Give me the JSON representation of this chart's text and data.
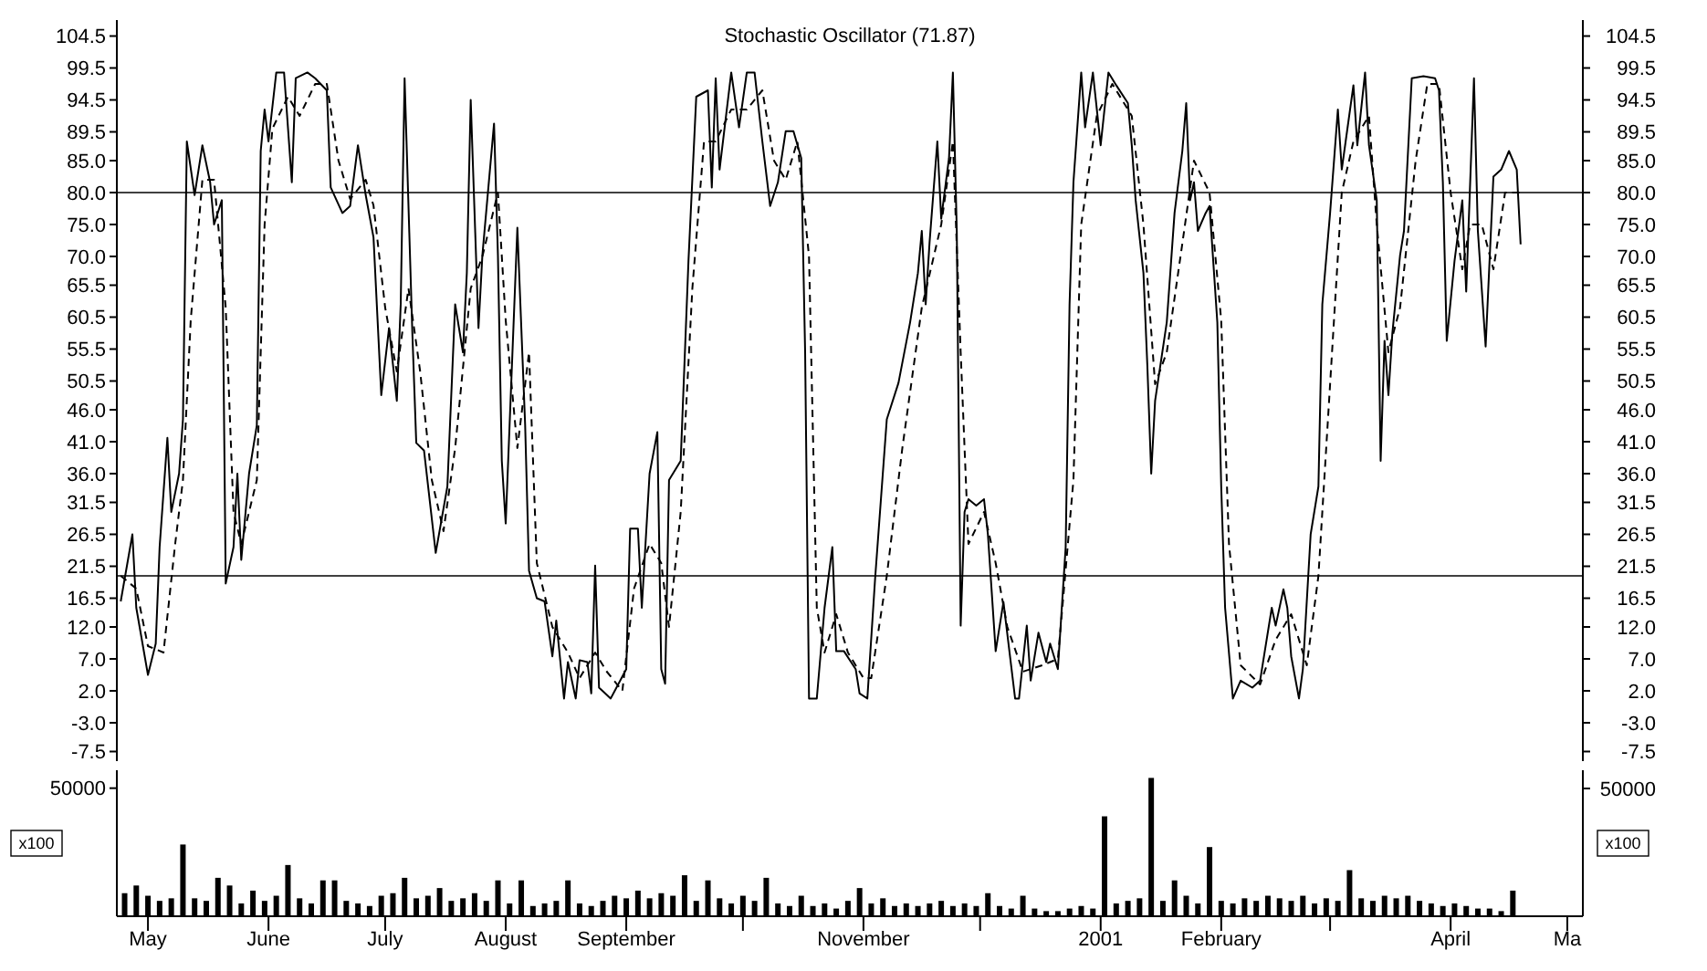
{
  "chart_data": [
    {
      "type": "line",
      "title": "Stochastic Oscillator (71.87)",
      "xlim": [
        "2000-04-23",
        "2001-05-05"
      ],
      "ylim": [
        -9,
        107
      ],
      "y2lim": [
        -9,
        107
      ],
      "tick_labels": "y",
      "yticks": [
        {
          "value": 104.5,
          "label": "104.5"
        },
        {
          "value": 99.5,
          "label": "99.5"
        },
        {
          "value": 94.5,
          "label": "94.5"
        },
        {
          "value": 89.5,
          "label": "89.5"
        },
        {
          "value": 85,
          "label": "85.0"
        },
        {
          "value": 80,
          "label": "80.0"
        },
        {
          "value": 75,
          "label": "75.0"
        },
        {
          "value": 70,
          "label": "70.0"
        },
        {
          "value": 65.5,
          "label": "65.5"
        },
        {
          "value": 60.5,
          "label": "60.5"
        },
        {
          "value": 55.5,
          "label": "55.5"
        },
        {
          "value": 50.5,
          "label": "50.5"
        },
        {
          "value": 46,
          "label": "46.0"
        },
        {
          "value": 41,
          "label": "41.0"
        },
        {
          "value": 36,
          "label": "36.0"
        },
        {
          "value": 31.5,
          "label": "31.5"
        },
        {
          "value": 26.5,
          "label": "26.5"
        },
        {
          "value": 21.5,
          "label": "21.5"
        },
        {
          "value": 16.5,
          "label": "16.5"
        },
        {
          "value": 12,
          "label": "12.0"
        },
        {
          "value": 7,
          "label": "7.0"
        },
        {
          "value": 2,
          "label": "2.0"
        },
        {
          "value": -3,
          "label": "-3.0"
        },
        {
          "value": -7.5,
          "label": "-7.5"
        }
      ],
      "y2ticks": [
        {
          "value": 104.5,
          "label": "104.5"
        },
        {
          "value": 99.5,
          "label": "99.5"
        },
        {
          "value": 94.5,
          "label": "94.5"
        },
        {
          "value": 89.5,
          "label": "89.5"
        },
        {
          "value": 85,
          "label": "85.0"
        },
        {
          "value": 80,
          "label": "80.0"
        },
        {
          "value": 75,
          "label": "75.0"
        },
        {
          "value": 70,
          "label": "70.0"
        },
        {
          "value": 65.5,
          "label": "65.5"
        },
        {
          "value": 60.5,
          "label": "60.5"
        },
        {
          "value": 55.5,
          "label": "55.5"
        },
        {
          "value": 50.5,
          "label": "50.5"
        },
        {
          "value": 46,
          "label": "46.0"
        },
        {
          "value": 41,
          "label": "41.0"
        },
        {
          "value": 36,
          "label": "36.0"
        },
        {
          "value": 31.5,
          "label": "31.5"
        },
        {
          "value": 26.5,
          "label": "26.5"
        },
        {
          "value": 21.5,
          "label": "21.5"
        },
        {
          "value": 16.5,
          "label": "16.5"
        },
        {
          "value": 12,
          "label": "12.0"
        },
        {
          "value": 7,
          "label": "7.0"
        },
        {
          "value": 2,
          "label": "2.0"
        },
        {
          "value": -3,
          "label": "-3.0"
        },
        {
          "value": -7.5,
          "label": "-7.5"
        }
      ],
      "ref_lines": [
        {
          "axis": "y",
          "value": 80,
          "color": "#000000"
        },
        {
          "axis": "y",
          "value": 20,
          "color": "#000000"
        }
      ],
      "series": [
        {
          "color": "#000000",
          "line_style": "solid",
          "x": [
            "2000-04-24",
            "2000-04-27",
            "2000-04-28",
            "2000-05-01",
            "2000-05-03",
            "2000-05-04",
            "2000-05-06",
            "2000-05-07",
            "2000-05-09",
            "2000-05-10",
            "2000-05-11",
            "2000-05-13",
            "2000-05-15",
            "2000-05-17",
            "2000-05-18",
            "2000-05-20",
            "2000-05-21",
            "2000-05-23",
            "2000-05-24",
            "2000-05-25",
            "2000-05-27",
            "2000-05-29",
            "2000-05-30",
            "2000-05-31",
            "2000-06-01",
            "2000-06-03",
            "2000-06-05",
            "2000-06-07",
            "2000-06-08",
            "2000-06-11",
            "2000-06-13",
            "2000-06-16",
            "2000-06-17",
            "2000-06-20",
            "2000-06-22",
            "2000-06-24",
            "2000-06-26",
            "2000-06-28",
            "2000-06-30",
            "2000-07-02",
            "2000-07-04",
            "2000-07-05",
            "2000-07-06",
            "2000-07-08",
            "2000-07-09",
            "2000-07-11",
            "2000-07-14",
            "2000-07-17",
            "2000-07-19",
            "2000-07-21",
            "2000-07-22",
            "2000-07-23",
            "2000-07-25",
            "2000-07-26",
            "2000-07-29",
            "2000-07-30",
            "2000-07-31",
            "2000-08-01",
            "2000-08-04",
            "2000-08-06",
            "2000-08-07",
            "2000-08-09",
            "2000-08-11",
            "2000-08-13",
            "2000-08-14",
            "2000-08-16",
            "2000-08-17",
            "2000-08-19",
            "2000-08-20",
            "2000-08-22",
            "2000-08-23",
            "2000-08-24",
            "2000-08-25",
            "2000-08-28",
            "2000-09-01",
            "2000-09-02",
            "2000-09-04",
            "2000-09-05",
            "2000-09-07",
            "2000-09-09",
            "2000-09-10",
            "2000-09-11",
            "2000-09-12",
            "2000-09-15",
            "2000-09-17",
            "2000-09-19",
            "2000-09-22",
            "2000-09-23",
            "2000-09-24",
            "2000-09-25",
            "2000-09-28",
            "2000-09-30",
            "2000-10-02",
            "2000-10-04",
            "2000-10-06",
            "2000-10-08",
            "2000-10-10",
            "2000-10-12",
            "2000-10-14",
            "2000-10-16",
            "2000-10-17",
            "2000-10-18",
            "2000-10-20",
            "2000-10-22",
            "2000-10-24",
            "2000-10-25",
            "2000-10-27",
            "2000-10-30",
            "2000-10-31",
            "2000-11-02",
            "2000-11-04",
            "2000-11-07",
            "2000-11-10",
            "2000-11-13",
            "2000-11-15",
            "2000-11-16",
            "2000-11-17",
            "2000-11-18",
            "2000-11-20",
            "2000-11-21",
            "2000-11-23",
            "2000-11-24",
            "2000-11-25",
            "2000-11-26",
            "2000-11-27",
            "2000-11-28",
            "2000-11-30",
            "2000-12-02",
            "2000-12-03",
            "2000-12-05",
            "2000-12-07",
            "2000-12-10",
            "2000-12-11",
            "2000-12-13",
            "2000-12-14",
            "2000-12-16",
            "2000-12-18",
            "2000-12-19",
            "2000-12-21",
            "2000-12-23",
            "2000-12-24",
            "2000-12-25",
            "2000-12-27",
            "2000-12-28",
            "2000-12-30",
            "2001-01-01",
            "2001-01-03",
            "2001-01-05",
            "2001-01-08",
            "2001-01-09",
            "2001-01-10",
            "2001-01-12",
            "2001-01-13",
            "2001-01-14",
            "2001-01-15",
            "2001-01-18",
            "2001-01-20",
            "2001-01-22",
            "2001-01-23",
            "2001-01-24",
            "2001-01-25",
            "2001-01-26",
            "2001-01-28",
            "2001-01-29",
            "2001-01-31",
            "2001-02-01",
            "2001-02-02",
            "2001-02-04",
            "2001-02-06",
            "2001-02-09",
            "2001-02-11",
            "2001-02-12",
            "2001-02-14",
            "2001-02-15",
            "2001-02-17",
            "2001-02-18",
            "2001-02-19",
            "2001-02-21",
            "2001-02-22",
            "2001-02-24",
            "2001-02-26",
            "2001-02-27",
            "2001-03-01",
            "2001-03-03",
            "2001-03-04",
            "2001-03-05",
            "2001-03-07",
            "2001-03-08",
            "2001-03-10",
            "2001-03-11",
            "2001-03-13",
            "2001-03-14",
            "2001-03-15",
            "2001-03-16",
            "2001-03-17",
            "2001-03-19",
            "2001-03-20",
            "2001-03-22",
            "2001-03-25",
            "2001-03-28",
            "2001-03-29",
            "2001-03-30",
            "2001-03-31",
            "2001-04-02",
            "2001-04-04",
            "2001-04-05",
            "2001-04-07",
            "2001-04-08",
            "2001-04-10",
            "2001-04-12",
            "2001-04-14",
            "2001-04-16",
            "2001-04-18",
            "2001-04-19"
          ],
          "values": [
            16,
            26.5,
            15,
            4.5,
            9.4,
            24.5,
            41.6,
            30,
            36,
            44.5,
            88,
            79.6,
            87.4,
            81.6,
            75,
            78.8,
            18.8,
            24.5,
            36,
            22.5,
            36,
            43.6,
            86.5,
            93,
            88,
            98.8,
            98.8,
            81.6,
            97.9,
            98.8,
            97.9,
            96,
            80.8,
            76.8,
            77.9,
            87.4,
            79.6,
            73,
            48.3,
            58.8,
            47.4,
            62.5,
            97.9,
            57.9,
            40.8,
            39.6,
            23.6,
            34,
            62.5,
            55,
            67.4,
            94.5,
            58.8,
            70.2,
            90.8,
            70.2,
            38,
            28.2,
            74.5,
            43.6,
            20.8,
            16.5,
            16,
            7.4,
            13,
            0.8,
            6.5,
            0.8,
            6.8,
            6.5,
            1.6,
            21.6,
            2.5,
            0.8,
            5.4,
            27.4,
            27.4,
            15,
            36,
            42.5,
            5.4,
            3.1,
            35,
            38,
            69.3,
            95,
            96,
            80.8,
            97.9,
            83.6,
            98.8,
            90.2,
            98.8,
            98.8,
            88,
            77.9,
            81.6,
            89.6,
            89.6,
            85.4,
            55,
            0.8,
            0.8,
            15,
            24.5,
            8.2,
            8.2,
            5.4,
            1.6,
            0.8,
            19.6,
            44.5,
            50.2,
            59.7,
            67.4,
            74,
            62.5,
            72.2,
            88,
            75.9,
            85.4,
            98.8,
            74,
            12.2,
            30,
            32,
            31,
            32,
            26.5,
            8.2,
            15.9,
            0.8,
            0.8,
            12.2,
            3.6,
            11.1,
            6.5,
            9.4,
            5.4,
            24.5,
            62.5,
            81.6,
            98.8,
            90.2,
            98.8,
            87.4,
            98.8,
            96.8,
            94,
            87.4,
            78.8,
            67.4,
            53,
            36,
            47.4,
            59.7,
            76.8,
            86.5,
            94,
            78.8,
            81.6,
            74,
            76.8,
            77.9,
            59.7,
            34,
            15,
            0.8,
            3.6,
            2.5,
            3.6,
            7.4,
            15,
            12.2,
            17.9,
            15,
            7.4,
            0.8,
            5.4,
            26.5,
            34,
            62.5,
            76.8,
            93,
            83.6,
            88,
            96.8,
            87.4,
            98.8,
            87.4,
            78.8,
            38,
            56.8,
            48.3,
            57.9,
            70.2,
            74,
            97.9,
            98.2,
            97.9,
            96,
            81.6,
            56.8,
            69.3,
            78.8,
            64.5,
            97.9,
            74,
            55.9,
            82.5,
            83.6,
            86.5,
            83.6,
            71.9
          ]
        },
        {
          "color": "#000000",
          "line_style": "dashed",
          "x": [
            "2000-04-24",
            "2000-04-28",
            "2000-05-01",
            "2000-05-05",
            "2000-05-08",
            "2000-05-10",
            "2000-05-12",
            "2000-05-15",
            "2000-05-18",
            "2000-05-21",
            "2000-05-23",
            "2000-05-25",
            "2000-05-29",
            "2000-05-31",
            "2000-06-02",
            "2000-06-06",
            "2000-06-09",
            "2000-06-13",
            "2000-06-16",
            "2000-06-19",
            "2000-06-22",
            "2000-06-26",
            "2000-06-28",
            "2000-07-01",
            "2000-07-04",
            "2000-07-07",
            "2000-07-10",
            "2000-07-13",
            "2000-07-16",
            "2000-07-19",
            "2000-07-23",
            "2000-07-26",
            "2000-07-30",
            "2000-08-01",
            "2000-08-04",
            "2000-08-07",
            "2000-08-09",
            "2000-08-13",
            "2000-08-17",
            "2000-08-20",
            "2000-08-24",
            "2000-08-27",
            "2000-08-31",
            "2000-09-03",
            "2000-09-07",
            "2000-09-10",
            "2000-09-12",
            "2000-09-15",
            "2000-09-18",
            "2000-09-21",
            "2000-09-24",
            "2000-09-28",
            "2000-10-02",
            "2000-10-06",
            "2000-10-09",
            "2000-10-12",
            "2000-10-15",
            "2000-10-18",
            "2000-10-20",
            "2000-10-22",
            "2000-10-25",
            "2000-10-28",
            "2000-11-01",
            "2000-11-03",
            "2000-11-07",
            "2000-11-11",
            "2000-11-16",
            "2000-11-21",
            "2000-11-24",
            "2000-11-26",
            "2000-11-28",
            "2000-12-02",
            "2000-12-05",
            "2000-12-08",
            "2000-12-12",
            "2000-12-17",
            "2000-12-21",
            "2000-12-25",
            "2000-12-27",
            "2000-12-31",
            "2001-01-04",
            "2001-01-09",
            "2001-01-12",
            "2001-01-15",
            "2001-01-18",
            "2001-01-22",
            "2001-01-25",
            "2001-01-29",
            "2001-02-01",
            "2001-02-03",
            "2001-02-06",
            "2001-02-11",
            "2001-02-15",
            "2001-02-19",
            "2001-02-23",
            "2001-02-26",
            "2001-03-01",
            "2001-03-04",
            "2001-03-07",
            "2001-03-11",
            "2001-03-13",
            "2001-03-16",
            "2001-03-19",
            "2001-03-23",
            "2001-03-26",
            "2001-03-29",
            "2001-04-01",
            "2001-04-04",
            "2001-04-06",
            "2001-04-09",
            "2001-04-12",
            "2001-04-15",
            "2001-04-19"
          ],
          "values": [
            20,
            18,
            9,
            8,
            25,
            35,
            60,
            82,
            82,
            62,
            30,
            25,
            35,
            75,
            90,
            95,
            92,
            97,
            97,
            85,
            79,
            82,
            78,
            62,
            52,
            65,
            52,
            35,
            27,
            40,
            65,
            70,
            80,
            60,
            40,
            55,
            22,
            12,
            8,
            4,
            8,
            5,
            2,
            18,
            25,
            22,
            12,
            30,
            65,
            88,
            88,
            93,
            93,
            96,
            85,
            82,
            88,
            70,
            15,
            8,
            14,
            8,
            4,
            4,
            20,
            40,
            62,
            75,
            88,
            55,
            25,
            30,
            22,
            12,
            5,
            6,
            7,
            35,
            75,
            92,
            97,
            92,
            75,
            50,
            55,
            72,
            85,
            80,
            60,
            25,
            6,
            3,
            10,
            14,
            6,
            20,
            50,
            80,
            88,
            92,
            75,
            55,
            62,
            85,
            97,
            97,
            80,
            68,
            75,
            75,
            68,
            80,
            80
          ]
        }
      ]
    },
    {
      "type": "bar",
      "xlim": [
        "2000-04-23",
        "2001-05-05"
      ],
      "ylim": [
        0,
        57000
      ],
      "yticks": [
        50000
      ],
      "annotations": [
        "50000"
      ],
      "ylabel": "x100",
      "y2label": "x100",
      "color": "#000000",
      "xticks": [
        {
          "value": "2000-05-01",
          "label": "May"
        },
        {
          "value": "2000-06-01",
          "label": "June"
        },
        {
          "value": "2000-07-01",
          "label": "July"
        },
        {
          "value": "2000-08-01",
          "label": "August"
        },
        {
          "value": "2000-09-01",
          "label": "September"
        },
        {
          "value": "2000-10-01",
          "label": null
        },
        {
          "value": "2000-11-01",
          "label": "November"
        },
        {
          "value": "2000-12-01",
          "label": null
        },
        {
          "value": "2001-01-01",
          "label": "2001"
        },
        {
          "value": "2001-02-01",
          "label": "February"
        },
        {
          "value": "2001-03-01",
          "label": null
        },
        {
          "value": "2001-04-01",
          "label": "April"
        },
        {
          "value": "2001-05-01",
          "label": "Ma"
        }
      ],
      "x": [
        "2000-04-25",
        "2000-04-28",
        "2000-05-01",
        "2000-05-04",
        "2000-05-07",
        "2000-05-10",
        "2000-05-13",
        "2000-05-16",
        "2000-05-19",
        "2000-05-22",
        "2000-05-25",
        "2000-05-28",
        "2000-05-31",
        "2000-06-03",
        "2000-06-06",
        "2000-06-09",
        "2000-06-12",
        "2000-06-15",
        "2000-06-18",
        "2000-06-21",
        "2000-06-24",
        "2000-06-27",
        "2000-06-30",
        "2000-07-03",
        "2000-07-06",
        "2000-07-09",
        "2000-07-12",
        "2000-07-15",
        "2000-07-18",
        "2000-07-21",
        "2000-07-24",
        "2000-07-27",
        "2000-07-30",
        "2000-08-02",
        "2000-08-05",
        "2000-08-08",
        "2000-08-11",
        "2000-08-14",
        "2000-08-17",
        "2000-08-20",
        "2000-08-23",
        "2000-08-26",
        "2000-08-29",
        "2000-09-01",
        "2000-09-04",
        "2000-09-07",
        "2000-09-10",
        "2000-09-13",
        "2000-09-16",
        "2000-09-19",
        "2000-09-22",
        "2000-09-25",
        "2000-09-28",
        "2000-10-01",
        "2000-10-04",
        "2000-10-07",
        "2000-10-10",
        "2000-10-13",
        "2000-10-16",
        "2000-10-19",
        "2000-10-22",
        "2000-10-25",
        "2000-10-28",
        "2000-10-31",
        "2000-11-03",
        "2000-11-06",
        "2000-11-09",
        "2000-11-12",
        "2000-11-15",
        "2000-11-18",
        "2000-11-21",
        "2000-11-24",
        "2000-11-27",
        "2000-11-30",
        "2000-12-03",
        "2000-12-06",
        "2000-12-09",
        "2000-12-12",
        "2000-12-15",
        "2000-12-18",
        "2000-12-21",
        "2000-12-24",
        "2000-12-27",
        "2000-12-30",
        "2001-01-02",
        "2001-01-05",
        "2001-01-08",
        "2001-01-11",
        "2001-01-14",
        "2001-01-17",
        "2001-01-20",
        "2001-01-23",
        "2001-01-26",
        "2001-01-29",
        "2001-02-01",
        "2001-02-04",
        "2001-02-07",
        "2001-02-10",
        "2001-02-13",
        "2001-02-16",
        "2001-02-19",
        "2001-02-22",
        "2001-02-25",
        "2001-02-28",
        "2001-03-03",
        "2001-03-06",
        "2001-03-09",
        "2001-03-12",
        "2001-03-15",
        "2001-03-18",
        "2001-03-21",
        "2001-03-24",
        "2001-03-27",
        "2001-03-30",
        "2001-04-02",
        "2001-04-05",
        "2001-04-08",
        "2001-04-11",
        "2001-04-14",
        "2001-04-17"
      ],
      "values": [
        9000,
        12000,
        8000,
        6000,
        7000,
        28000,
        7000,
        6000,
        15000,
        12000,
        5000,
        10000,
        6000,
        8000,
        20000,
        7000,
        5000,
        14000,
        14000,
        6000,
        5000,
        4000,
        8000,
        9000,
        15000,
        7000,
        8000,
        11000,
        6000,
        7000,
        9000,
        6000,
        14000,
        5000,
        14000,
        4000,
        5000,
        6000,
        14000,
        5000,
        4000,
        6000,
        8000,
        7000,
        10000,
        7000,
        9000,
        8000,
        16000,
        6000,
        14000,
        7000,
        5000,
        8000,
        6000,
        15000,
        5000,
        4000,
        8000,
        4000,
        5000,
        3000,
        6000,
        11000,
        5000,
        7000,
        4000,
        5000,
        4000,
        5000,
        6000,
        4000,
        5000,
        4000,
        9000,
        4000,
        3000,
        8000,
        3000,
        2000,
        2000,
        3000,
        4000,
        3000,
        39000,
        5000,
        6000,
        7000,
        54000,
        6000,
        14000,
        8000,
        5000,
        27000,
        6000,
        5000,
        7000,
        6000,
        8000,
        7000,
        6000,
        8000,
        5000,
        7000,
        6000,
        18000,
        7000,
        6000,
        8000,
        7000,
        8000,
        6000,
        5000,
        4000,
        5000,
        4000,
        3000,
        3000,
        2000,
        10000
      ]
    }
  ]
}
